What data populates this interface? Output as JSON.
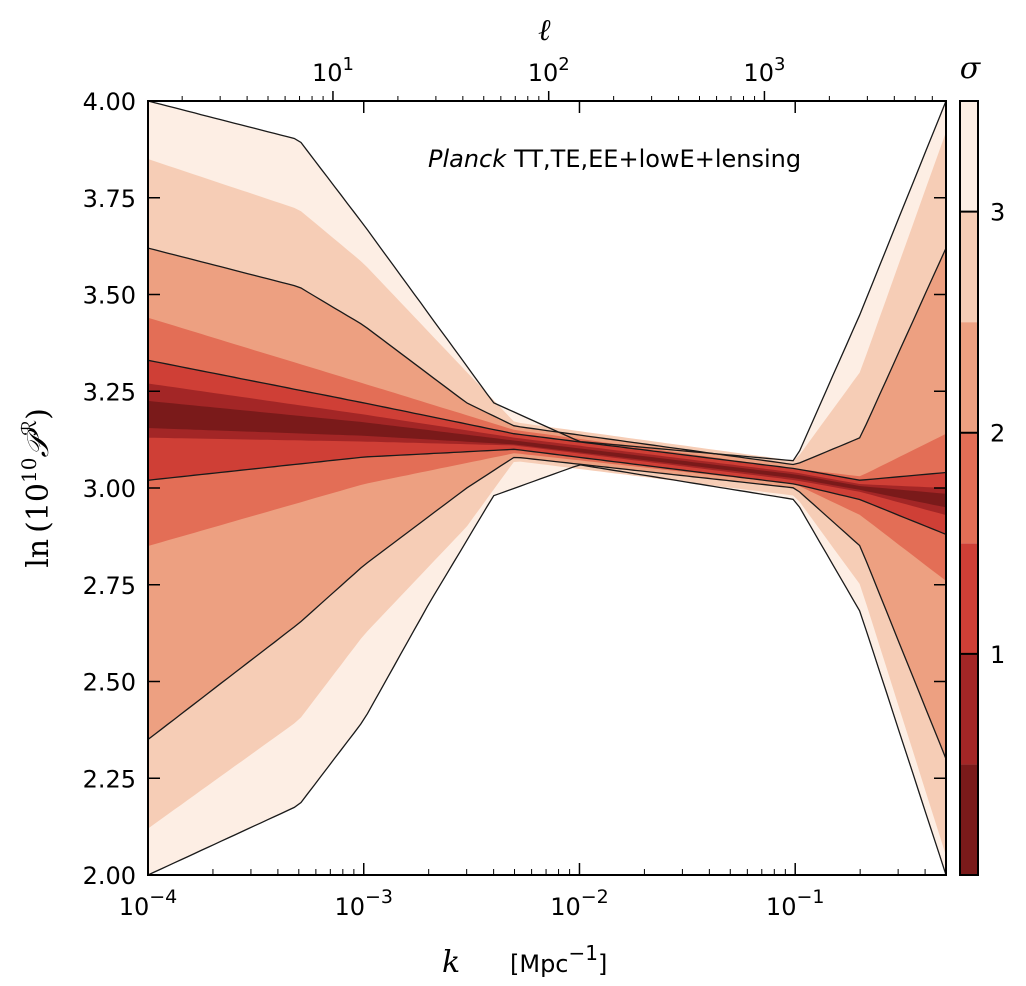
{
  "chart_data": {
    "type": "contour",
    "annotation": {
      "italic": "Planck",
      "rest": "TT,TE,EE+lowE+lensing"
    },
    "x_axis": {
      "scale": "log",
      "unit_label": "[Mpc",
      "unit_exp": "−1",
      "unit_close": "]",
      "symbol": "k",
      "range": [
        0.0001,
        0.5
      ],
      "ticks": [
        {
          "value": 0.0001,
          "base": "10",
          "exp": "−4"
        },
        {
          "value": 0.001,
          "base": "10",
          "exp": "−3"
        },
        {
          "value": 0.01,
          "base": "10",
          "exp": "−2"
        },
        {
          "value": 0.1,
          "base": "10",
          "exp": "−1"
        }
      ]
    },
    "top_axis": {
      "scale": "log",
      "symbol": "ℓ",
      "ticks": [
        {
          "value": 10,
          "k_equiv": 0.00072,
          "base": "10",
          "exp": "1"
        },
        {
          "value": 100,
          "k_equiv": 0.0072,
          "base": "10",
          "exp": "2"
        },
        {
          "value": 1000,
          "k_equiv": 0.072,
          "base": "10",
          "exp": "3"
        }
      ]
    },
    "y_axis": {
      "label_prefix": "ln",
      "label_base": "10",
      "label_exp": "10",
      "label_sym": "𝒫",
      "label_sup": "ℛ",
      "range": [
        2.0,
        4.0
      ],
      "ticks": [
        "2.00",
        "2.25",
        "2.50",
        "2.75",
        "3.00",
        "3.25",
        "3.50",
        "3.75",
        "4.00"
      ]
    },
    "colorbar": {
      "label": "σ",
      "range": [
        0,
        3.5
      ],
      "levels": [
        0.5,
        1.0,
        1.5,
        2.0,
        2.5,
        3.0,
        3.5
      ],
      "ticks": [
        "1",
        "2",
        "3"
      ],
      "colors": [
        "#7a1a1a",
        "#a32626",
        "#cf3f36",
        "#e36e56",
        "#eda081",
        "#f6cdb6",
        "#fdeee4"
      ]
    },
    "center_curve": [
      [
        0.0001,
        3.18
      ],
      [
        0.001,
        3.15
      ],
      [
        0.004,
        3.12
      ],
      [
        0.01,
        3.1
      ],
      [
        0.05,
        3.06
      ],
      [
        0.1,
        3.03
      ],
      [
        0.2,
        3.0
      ],
      [
        0.5,
        2.97
      ]
    ],
    "sigma_bands": [
      {
        "level": 0.5,
        "upper": [
          [
            0.0001,
            3.27
          ],
          [
            0.001,
            3.19
          ],
          [
            0.005,
            3.13
          ],
          [
            0.1,
            3.04
          ],
          [
            0.2,
            3.01
          ],
          [
            0.5,
            3.0
          ]
        ],
        "lower": [
          [
            0.0001,
            3.13
          ],
          [
            0.001,
            3.12
          ],
          [
            0.005,
            3.11
          ],
          [
            0.1,
            3.02
          ],
          [
            0.2,
            2.99
          ],
          [
            0.5,
            2.93
          ]
        ]
      },
      {
        "level": 1.0,
        "upper": [
          [
            0.0001,
            3.33
          ],
          [
            0.001,
            3.22
          ],
          [
            0.005,
            3.14
          ],
          [
            0.1,
            3.05
          ],
          [
            0.2,
            3.02
          ],
          [
            0.5,
            3.04
          ]
        ],
        "lower": [
          [
            0.0001,
            3.02
          ],
          [
            0.001,
            3.08
          ],
          [
            0.005,
            3.1
          ],
          [
            0.1,
            3.01
          ],
          [
            0.2,
            2.97
          ],
          [
            0.5,
            2.88
          ]
        ]
      },
      {
        "level": 1.5,
        "upper": [
          [
            0.0001,
            3.44
          ],
          [
            0.001,
            3.27
          ],
          [
            0.005,
            3.15
          ],
          [
            0.1,
            3.05
          ],
          [
            0.2,
            3.03
          ],
          [
            0.5,
            3.14
          ]
        ],
        "lower": [
          [
            0.0001,
            2.85
          ],
          [
            0.001,
            3.01
          ],
          [
            0.005,
            3.09
          ],
          [
            0.1,
            3.01
          ],
          [
            0.2,
            2.93
          ],
          [
            0.5,
            2.76
          ]
        ]
      },
      {
        "level": 2.0,
        "upper": [
          [
            0.0001,
            3.62
          ],
          [
            0.0005,
            3.52
          ],
          [
            0.001,
            3.42
          ],
          [
            0.003,
            3.22
          ],
          [
            0.005,
            3.16
          ],
          [
            0.1,
            3.06
          ],
          [
            0.2,
            3.13
          ],
          [
            0.5,
            3.62
          ]
        ],
        "lower": [
          [
            0.0001,
            2.35
          ],
          [
            0.0005,
            2.65
          ],
          [
            0.001,
            2.8
          ],
          [
            0.003,
            3.0
          ],
          [
            0.005,
            3.08
          ],
          [
            0.1,
            3.0
          ],
          [
            0.2,
            2.85
          ],
          [
            0.5,
            2.3
          ]
        ]
      },
      {
        "level": 2.5,
        "upper": [
          [
            0.0001,
            3.85
          ],
          [
            0.0005,
            3.72
          ],
          [
            0.001,
            3.58
          ],
          [
            0.003,
            3.3
          ],
          [
            0.005,
            3.17
          ],
          [
            0.1,
            3.07
          ],
          [
            0.2,
            3.3
          ],
          [
            0.5,
            3.92
          ]
        ],
        "lower": [
          [
            0.0001,
            2.12
          ],
          [
            0.0005,
            2.4
          ],
          [
            0.001,
            2.62
          ],
          [
            0.003,
            2.9
          ],
          [
            0.005,
            3.07
          ],
          [
            0.1,
            2.98
          ],
          [
            0.2,
            2.75
          ],
          [
            0.5,
            2.05
          ]
        ]
      },
      {
        "level": 3.0,
        "upper": [
          [
            0.0001,
            4.0
          ],
          [
            0.0005,
            3.9
          ],
          [
            0.001,
            3.68
          ],
          [
            0.002,
            3.45
          ],
          [
            0.004,
            3.22
          ],
          [
            0.01,
            3.12
          ],
          [
            0.1,
            3.07
          ],
          [
            0.2,
            3.45
          ],
          [
            0.5,
            4.0
          ]
        ],
        "lower": [
          [
            0.0001,
            2.0
          ],
          [
            0.0005,
            2.18
          ],
          [
            0.001,
            2.4
          ],
          [
            0.002,
            2.7
          ],
          [
            0.004,
            2.98
          ],
          [
            0.01,
            3.06
          ],
          [
            0.1,
            2.97
          ],
          [
            0.2,
            2.68
          ],
          [
            0.5,
            2.0
          ]
        ]
      }
    ],
    "contour_lines": [
      1.0,
      2.0,
      3.0
    ]
  }
}
